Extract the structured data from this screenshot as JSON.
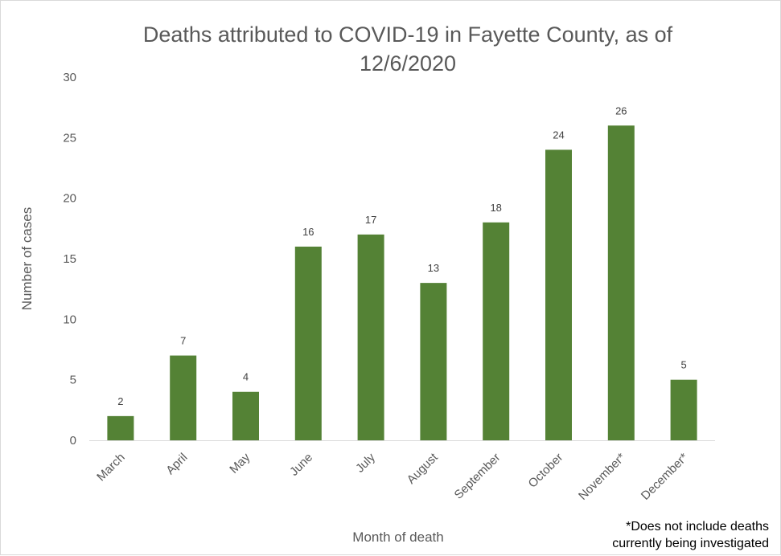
{
  "chart_data": {
    "type": "bar",
    "title_lines": [
      "Deaths attributed to COVID-19 in Fayette County, as of",
      "12/6/2020"
    ],
    "xlabel": "Month of death",
    "ylabel": "Number of cases",
    "categories": [
      "March",
      "April",
      "May",
      "June",
      "July",
      "August",
      "September",
      "October",
      "November*",
      "December*"
    ],
    "values": [
      2,
      7,
      4,
      16,
      17,
      13,
      18,
      24,
      26,
      5
    ],
    "ylim": [
      0,
      30
    ],
    "yticks": [
      0,
      5,
      10,
      15,
      20,
      25,
      30
    ],
    "grid": false,
    "bar_color": "#548235",
    "data_labels": true
  },
  "footnote": {
    "line1": "*Does not include deaths",
    "line2": "currently being investigated"
  }
}
